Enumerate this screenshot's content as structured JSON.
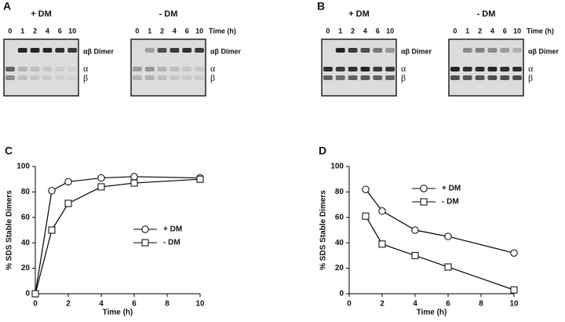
{
  "figure_panels": [
    {
      "letter": "A",
      "lane_unit": "Time (h)",
      "blots": [
        {
          "title": "+ DM",
          "lanes": [
            0,
            1,
            2,
            4,
            6,
            10
          ],
          "band_labels": [
            "αβ Dimer",
            "α",
            "β"
          ]
        },
        {
          "title": "- DM",
          "lanes": [
            0,
            1,
            2,
            4,
            6,
            10
          ],
          "band_labels": [
            "αβ Dimer",
            "α",
            "β"
          ]
        }
      ]
    },
    {
      "letter": "B",
      "lane_unit": "Time (h)",
      "blots": [
        {
          "title": "+ DM",
          "lanes": [
            0,
            1,
            2,
            4,
            6,
            10
          ],
          "band_labels": [
            "αβ Dimer",
            "α",
            "β"
          ]
        },
        {
          "title": "- DM",
          "lanes": [
            0,
            1,
            2,
            4,
            6,
            10
          ],
          "band_labels": [
            "αβ Dimer",
            "α",
            "β"
          ]
        }
      ]
    }
  ],
  "chart_data": [
    {
      "type": "line",
      "panel_label": "C",
      "xlabel": "Time (h)",
      "ylabel": "% SDS Stable Dimers",
      "x": [
        0,
        1,
        2,
        4,
        6,
        10
      ],
      "xlim": [
        0,
        10
      ],
      "xticks": [
        0,
        2,
        4,
        6,
        8,
        10
      ],
      "ylim": [
        0,
        100
      ],
      "yticks": [
        0,
        20,
        40,
        60,
        80,
        100
      ],
      "legend_position": "center right",
      "series": [
        {
          "name": "+ DM",
          "color": "#000000",
          "marker": "circle",
          "values": [
            0,
            81,
            88,
            91,
            92,
            91
          ]
        },
        {
          "name": "- DM",
          "color": "#000000",
          "marker": "square",
          "values": [
            0,
            50,
            71,
            84,
            87,
            90
          ]
        }
      ]
    },
    {
      "type": "line",
      "panel_label": "D",
      "xlabel": "Time (h)",
      "ylabel": "% SDS Stable Dimers",
      "x": [
        1,
        2,
        4,
        6,
        10
      ],
      "xlim": [
        0,
        10
      ],
      "xticks": [
        0,
        2,
        4,
        6,
        8,
        10
      ],
      "ylim": [
        0,
        100
      ],
      "yticks": [
        0,
        20,
        40,
        60,
        80,
        100
      ],
      "legend_position": "upper center",
      "series": [
        {
          "name": "+ DM",
          "color": "#000000",
          "marker": "circle",
          "values": [
            82,
            65,
            50,
            45,
            32
          ]
        },
        {
          "name": "- DM",
          "color": "#000000",
          "marker": "square",
          "values": [
            61,
            39,
            30,
            21,
            3
          ]
        }
      ]
    }
  ]
}
